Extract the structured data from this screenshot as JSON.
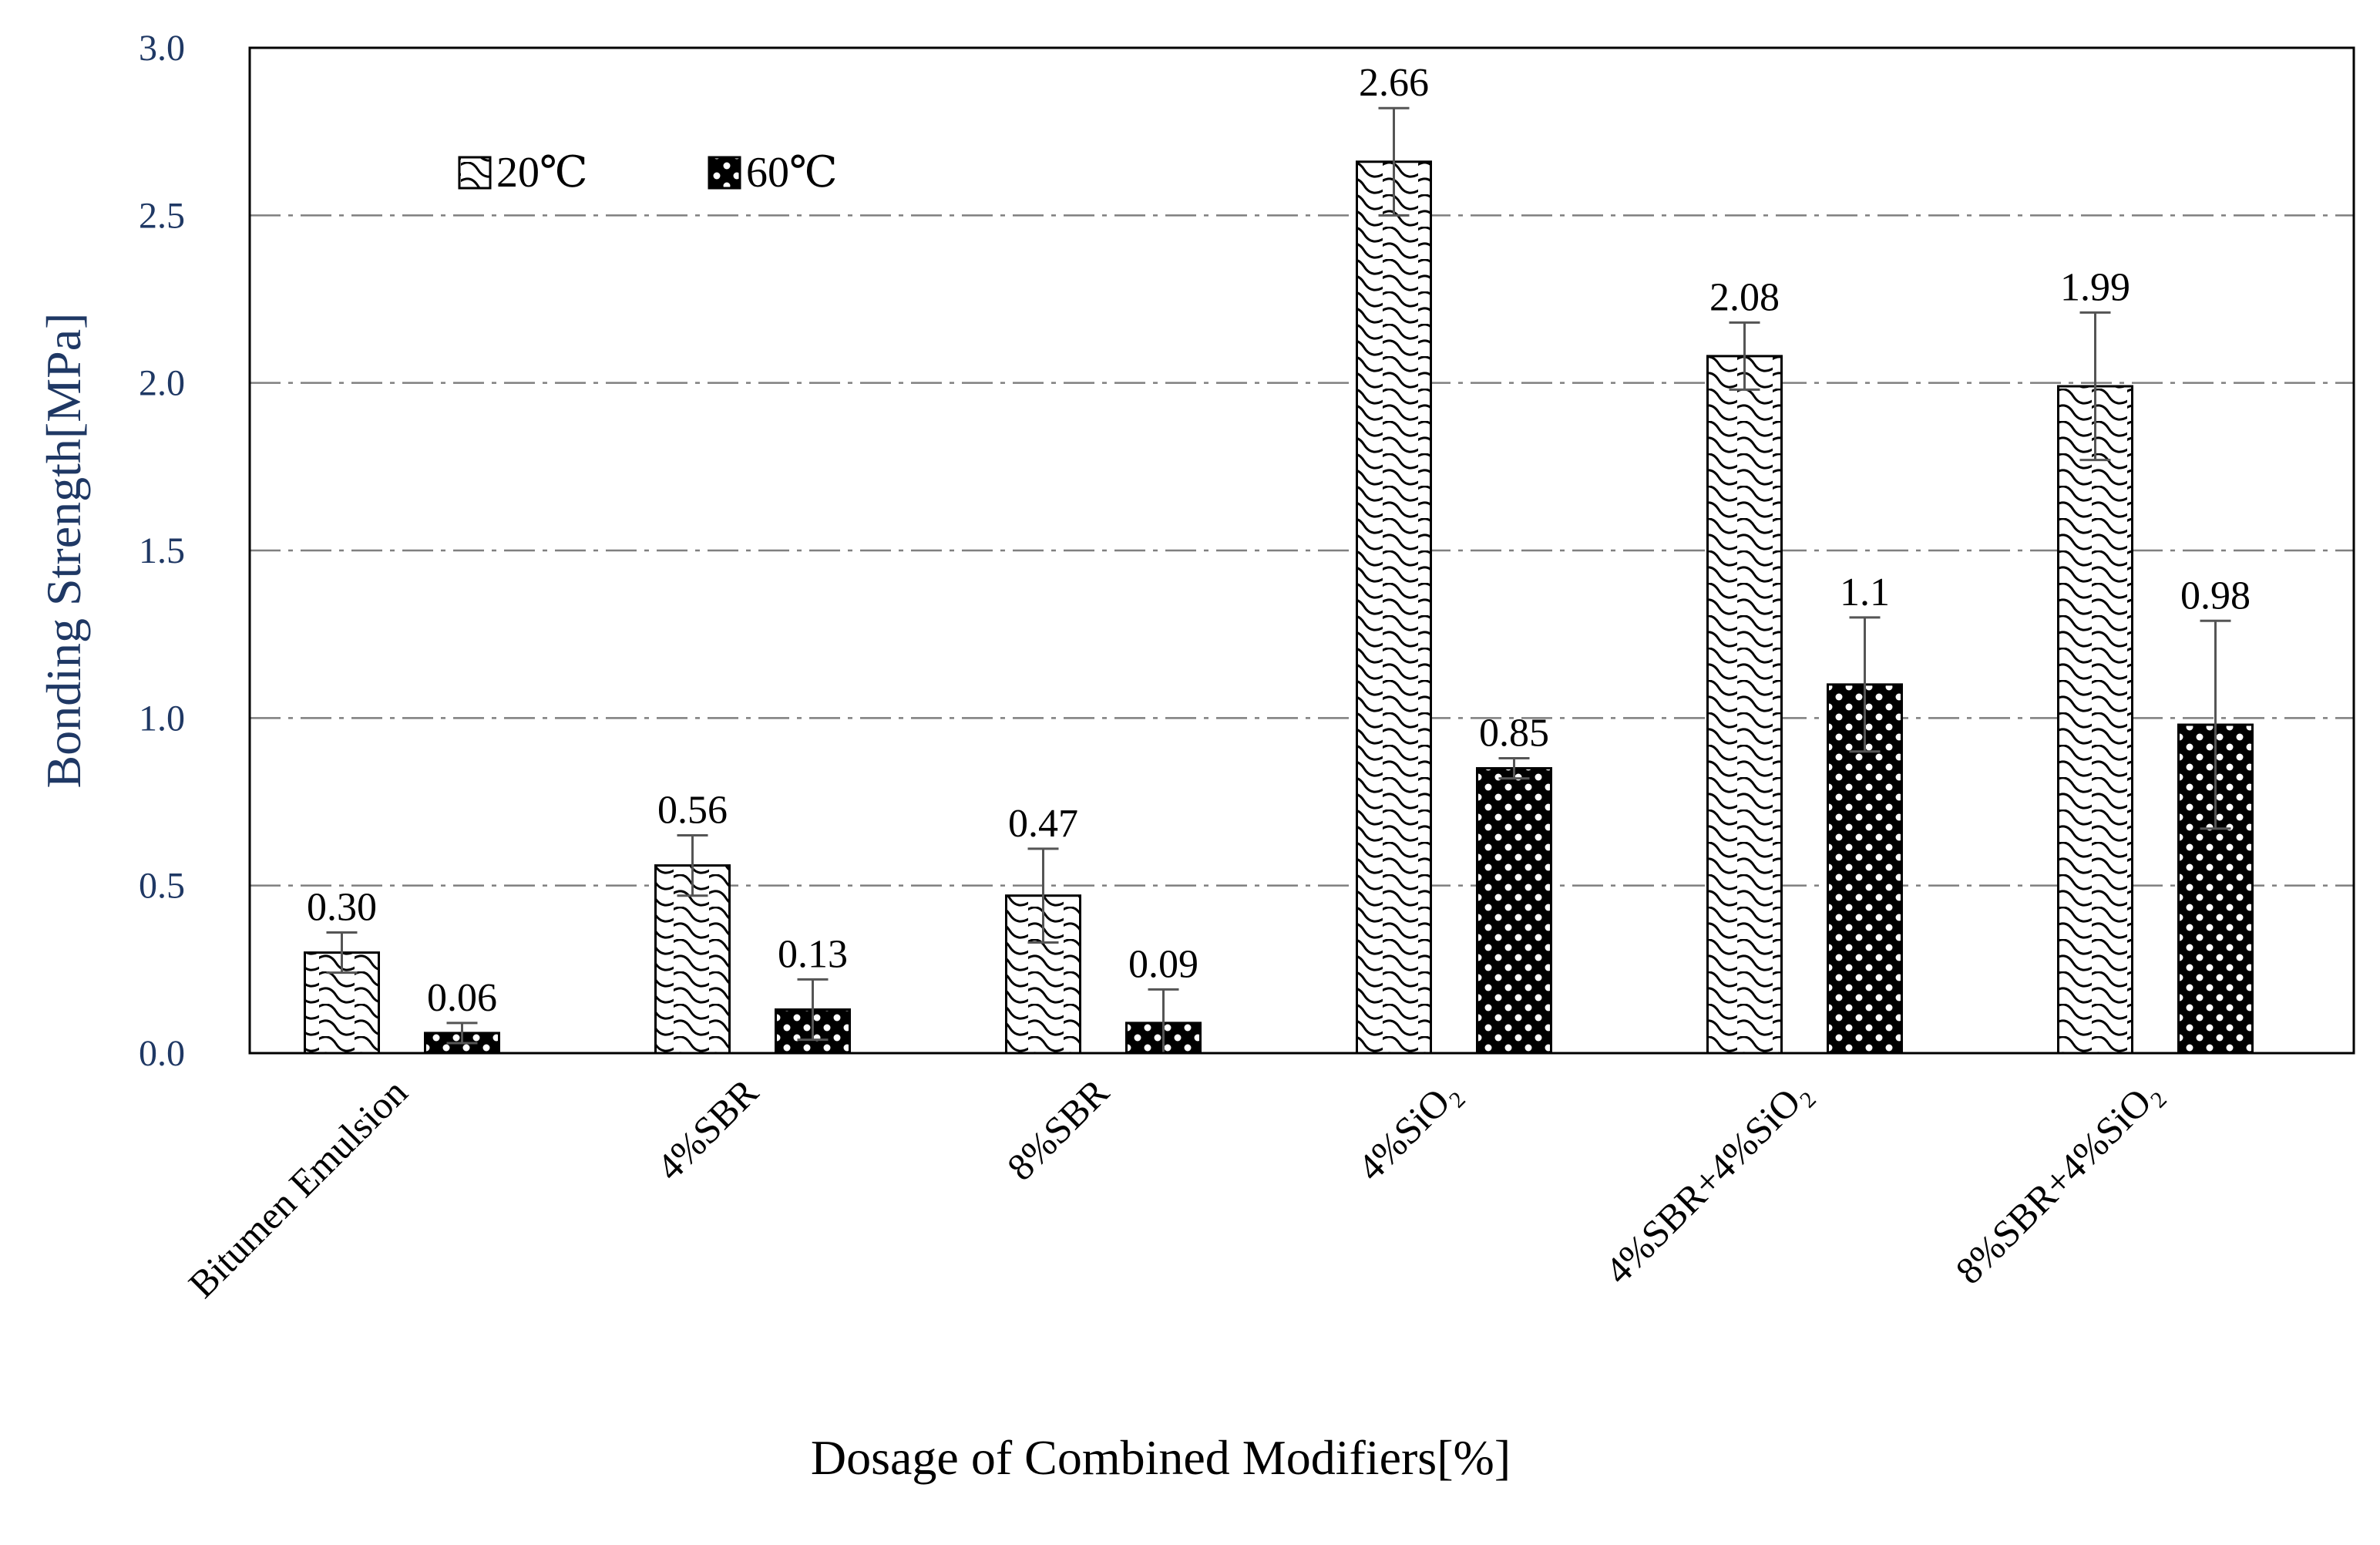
{
  "chart_data": {
    "type": "bar",
    "title": "",
    "xlabel": "Dosage of Combined Modifiers[%]",
    "ylabel": "Bonding Strength[MPa]",
    "ylim": [
      0,
      3.0
    ],
    "yticks": [
      "0.0",
      "0.5",
      "1.0",
      "1.5",
      "2.0",
      "2.5",
      "3.0"
    ],
    "grid": "horizontal dash-dot",
    "legend_position": "top-left",
    "categories": [
      "Bitumen Emulsion",
      "4%SBR",
      "8%SBR",
      "4%SiO₂",
      "4%SBR+4%SiO₂",
      "8%SBR+4%SiO₂"
    ],
    "series": [
      {
        "name": "20℃",
        "pattern": "wave-hatch",
        "values": [
          0.3,
          0.56,
          0.47,
          2.66,
          2.08,
          1.99
        ],
        "labels": [
          "0.30",
          "0.56",
          "0.47",
          "2.66",
          "2.08",
          "1.99"
        ],
        "error": [
          0.06,
          0.09,
          0.14,
          0.16,
          0.1,
          0.22
        ]
      },
      {
        "name": "60℃",
        "pattern": "dark-dot",
        "values": [
          0.06,
          0.13,
          0.09,
          0.85,
          1.1,
          0.98
        ],
        "labels": [
          "0.06",
          "0.13",
          "0.09",
          "0.85",
          "1.1",
          "0.98"
        ],
        "error": [
          0.03,
          0.09,
          0.1,
          0.03,
          0.2,
          0.31
        ]
      }
    ],
    "colors": {
      "axis_text": "#1f3864",
      "frame": "#000000",
      "grid": "#7f7f7f",
      "bar_edge": "#000000"
    }
  }
}
